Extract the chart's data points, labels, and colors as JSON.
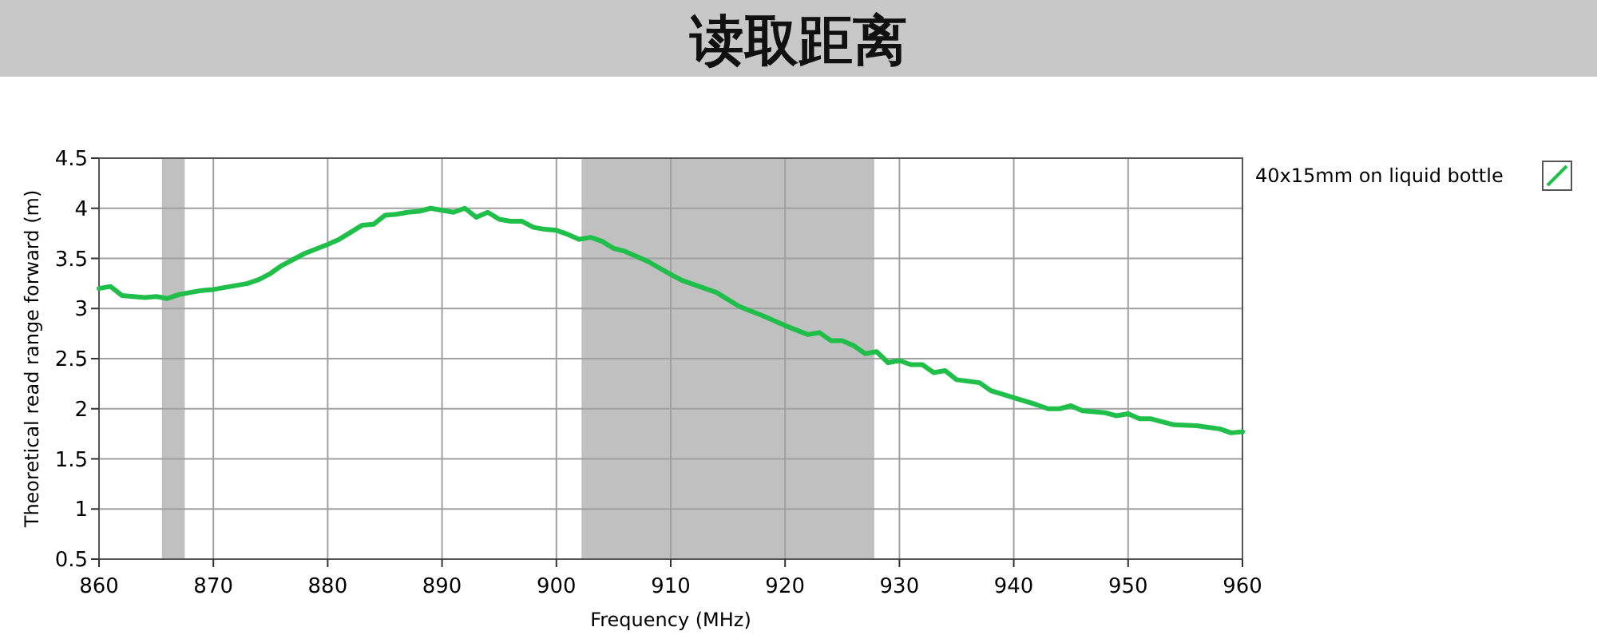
{
  "chart_data": {
    "type": "line",
    "title": "读取距离",
    "xlabel": "Frequency (MHz)",
    "ylabel": "Theoretical read range forward (m)",
    "x": [
      860,
      861,
      862,
      864,
      865,
      866,
      867,
      868,
      869,
      870,
      872,
      873,
      874,
      875,
      876,
      877,
      878,
      880,
      881,
      882,
      883,
      884,
      885,
      886,
      887,
      888,
      889,
      890,
      891,
      892,
      893,
      894,
      895,
      896,
      897,
      898,
      899,
      900,
      901,
      902,
      903,
      904,
      905,
      906,
      908,
      910,
      911,
      912,
      914,
      916,
      918,
      920,
      922,
      923,
      924,
      925,
      926,
      927,
      928,
      929,
      930,
      931,
      932,
      933,
      934,
      935,
      937,
      938,
      940,
      942,
      943,
      944,
      945,
      946,
      948,
      949,
      950,
      951,
      952,
      954,
      956,
      958,
      959,
      960
    ],
    "series": [
      {
        "name": "40x15mm on liquid bottle",
        "color": "#1fbf4a",
        "values": [
          3.2,
          3.22,
          3.13,
          3.11,
          3.12,
          3.1,
          3.14,
          3.16,
          3.18,
          3.19,
          3.23,
          3.25,
          3.29,
          3.35,
          3.43,
          3.49,
          3.55,
          3.64,
          3.69,
          3.76,
          3.83,
          3.84,
          3.93,
          3.94,
          3.96,
          3.97,
          4.0,
          3.98,
          3.96,
          4.0,
          3.91,
          3.96,
          3.89,
          3.87,
          3.87,
          3.81,
          3.79,
          3.78,
          3.74,
          3.69,
          3.71,
          3.67,
          3.6,
          3.57,
          3.47,
          3.34,
          3.28,
          3.24,
          3.16,
          3.02,
          2.93,
          2.83,
          2.74,
          2.76,
          2.68,
          2.68,
          2.63,
          2.55,
          2.57,
          2.46,
          2.48,
          2.44,
          2.44,
          2.36,
          2.38,
          2.29,
          2.26,
          2.18,
          2.11,
          2.04,
          2.0,
          2.0,
          2.03,
          1.98,
          1.96,
          1.93,
          1.95,
          1.9,
          1.9,
          1.84,
          1.83,
          1.8,
          1.76,
          1.77
        ]
      }
    ],
    "xlim": [
      860,
      960
    ],
    "xticks": [
      860,
      870,
      880,
      890,
      900,
      910,
      920,
      930,
      940,
      950,
      960
    ],
    "ylim": [
      0.5,
      4.5
    ],
    "yticks": [
      0.5,
      1,
      1.5,
      2,
      2.5,
      3,
      3.5,
      4,
      4.5
    ],
    "bands": [
      {
        "axis": "x",
        "from": 865.5,
        "to": 867.5,
        "color": "#c0c0c0"
      },
      {
        "axis": "x",
        "from": 902.2,
        "to": 927.8,
        "color": "#c0c0c0"
      }
    ],
    "grid": true,
    "legend": "top right",
    "line_style": "solid",
    "marker": "none"
  }
}
